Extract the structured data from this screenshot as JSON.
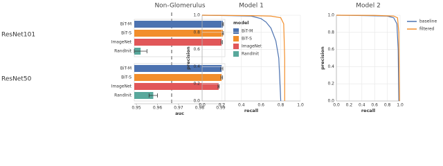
{
  "chart_data": [
    {
      "type": "hbar",
      "title": "Non-Glomerulus",
      "xlabel": "auc",
      "groups": [
        "ResNet101",
        "ResNet50"
      ],
      "legend_title": "model",
      "xlim": [
        0.949,
        0.992
      ],
      "xticks": [
        0.95,
        0.96,
        0.97,
        0.98,
        0.99
      ],
      "series": [
        {
          "name": "BiT-M",
          "color": "#4c72b0",
          "values": [
            0.991,
            0.9905
          ],
          "errors": [
            0.0003,
            0.0005
          ]
        },
        {
          "name": "BiT-S",
          "color": "#f28e2b",
          "values": [
            0.991,
            0.9905
          ],
          "errors": [
            0.0003,
            0.0004
          ]
        },
        {
          "name": "ImageNet",
          "color": "#e15759",
          "values": [
            0.9905,
            0.989
          ],
          "errors": [
            0.0003,
            0.0003
          ]
        },
        {
          "name": "RandInit",
          "color": "#59a89c",
          "values": [
            0.952,
            0.958
          ],
          "errors": [
            0.003,
            0.002
          ]
        }
      ]
    },
    {
      "type": "line",
      "title": "Model 1",
      "xlabel": "recall",
      "ylabel": "precision",
      "xlim": [
        0,
        1
      ],
      "ylim": [
        0,
        1
      ],
      "xticks": [
        {
          "value": 0,
          "label": "0.0"
        },
        0.2,
        0.4,
        0.6,
        0.8,
        {
          "value": 1,
          "label": "1.0"
        }
      ],
      "yticks": [
        {
          "value": 0,
          "label": "0.0"
        },
        0.2,
        0.4,
        0.6,
        0.8,
        {
          "value": 1,
          "label": "1.0"
        }
      ],
      "series": [
        {
          "color": "#4c72b0",
          "x": [
            0,
            0.3,
            0.5,
            0.6,
            0.65,
            0.7,
            0.75,
            0.78,
            0.8
          ],
          "values": [
            1,
            0.995,
            0.99,
            0.96,
            0.92,
            0.85,
            0.7,
            0.5,
            0
          ]
        },
        {
          "color": "#f28e2b",
          "x": [
            0,
            0.5,
            0.7,
            0.8,
            0.83,
            0.84,
            0.84
          ],
          "values": [
            1,
            0.995,
            0.99,
            0.97,
            0.9,
            0.5,
            0
          ]
        }
      ]
    },
    {
      "type": "line",
      "title": "Model 2",
      "xlabel": "recall",
      "ylabel": "precision",
      "legend": true,
      "xlim": [
        0,
        1
      ],
      "ylim": [
        0,
        1
      ],
      "xticks": [
        {
          "value": 0,
          "label": "0.0"
        },
        0.2,
        0.4,
        0.6,
        0.8,
        {
          "value": 1,
          "label": "1.0"
        }
      ],
      "yticks": [
        {
          "value": 0,
          "label": "0.0"
        },
        0.2,
        0.4,
        0.6,
        0.8,
        {
          "value": 1,
          "label": "1.0"
        }
      ],
      "series": [
        {
          "name": "baseline",
          "color": "#4c72b0",
          "x": [
            0,
            0.5,
            0.8,
            0.9,
            0.95,
            0.97,
            0.98
          ],
          "values": [
            1,
            0.995,
            0.99,
            0.97,
            0.9,
            0.6,
            0
          ]
        },
        {
          "name": "filtered",
          "color": "#f28e2b",
          "x": [
            0,
            0.6,
            0.9,
            0.96,
            0.98,
            0.99
          ],
          "values": [
            1,
            0.998,
            0.99,
            0.97,
            0.8,
            0
          ]
        }
      ]
    }
  ]
}
